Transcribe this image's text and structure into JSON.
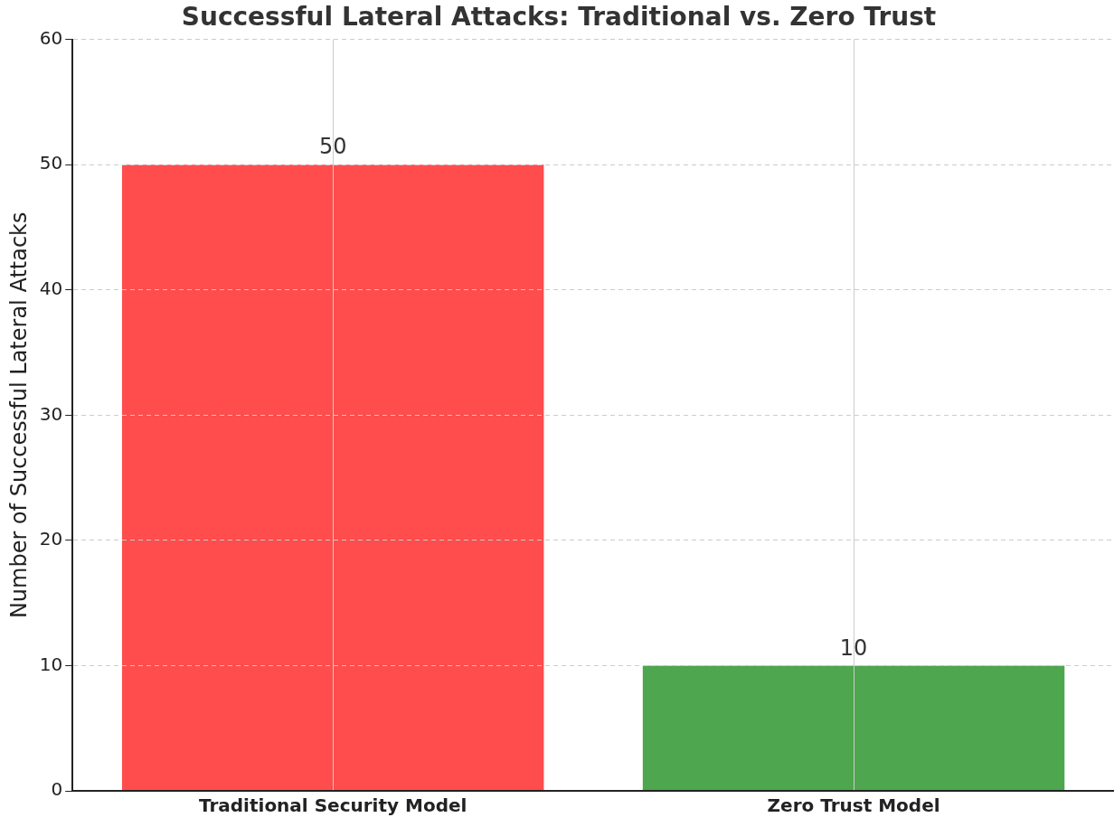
{
  "chart_data": {
    "type": "bar",
    "title": "Successful Lateral Attacks: Traditional vs. Zero Trust",
    "ylabel": "Number of Successful Lateral Attacks",
    "categories": [
      "Traditional Security Model",
      "Zero Trust Model"
    ],
    "values": [
      50,
      10
    ],
    "colors": [
      "#ff4d4d",
      "#4ea64e"
    ],
    "ylim": [
      0,
      60
    ],
    "yticks": [
      0,
      10,
      20,
      30,
      40,
      50,
      60
    ],
    "grid": true,
    "data_labels": true
  }
}
